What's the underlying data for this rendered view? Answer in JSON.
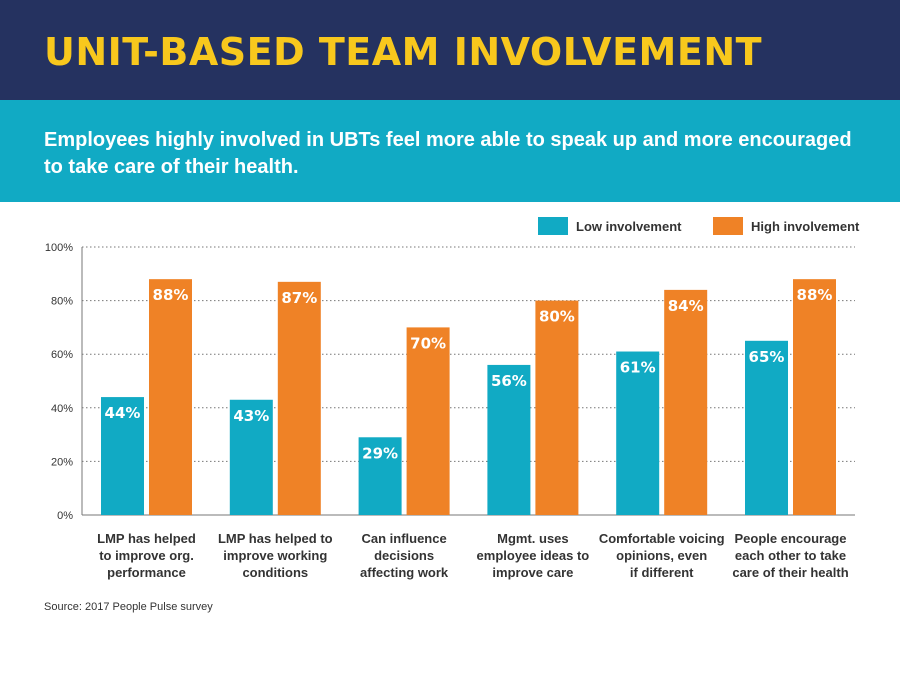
{
  "header": {
    "title": "UNIT-BASED TEAM INVOLVEMENT",
    "subtitle": "Employees highly involved in UBTs feel more able to speak up and more encouraged to take care of their health."
  },
  "colors": {
    "header_bg": "#253260",
    "title": "#f8c81d",
    "subtitle_bg": "#11aac4",
    "low": "#11aac4",
    "high": "#ef8226"
  },
  "source": "Source: 2017 People Pulse survey",
  "chart_data": {
    "type": "bar",
    "title": "",
    "xlabel": "",
    "ylabel": "",
    "ylim": [
      0,
      100
    ],
    "yticks": [
      0,
      20,
      40,
      60,
      80,
      100
    ],
    "ytick_labels": [
      "0%",
      "20%",
      "40%",
      "60%",
      "80%",
      "100%"
    ],
    "grid": true,
    "legend_position": "top-right",
    "categories": [
      "LMP has helped to improve org. performance",
      "LMP has helped to improve working conditions",
      "Can influence decisions affecting work",
      "Mgmt. uses employee ideas to improve care",
      "Comfortable voicing opinions, even if different",
      "People encourage each other to take care of their health"
    ],
    "category_lines": [
      [
        "LMP has helped",
        "to improve org.",
        "performance"
      ],
      [
        "LMP has helped to",
        "improve working",
        "conditions"
      ],
      [
        "Can influence",
        "decisions",
        "affecting work"
      ],
      [
        "Mgmt. uses",
        "employee ideas to",
        "improve care"
      ],
      [
        "Comfortable voicing",
        "opinions, even",
        "if different"
      ],
      [
        "People encourage",
        "each other to take",
        "care of their health"
      ]
    ],
    "series": [
      {
        "name": "Low involvement",
        "color": "#11aac4",
        "values": [
          44,
          43,
          29,
          56,
          61,
          65
        ],
        "labels": [
          "44%",
          "43%",
          "29%",
          "56%",
          "61%",
          "65%"
        ]
      },
      {
        "name": "High involvement",
        "color": "#ef8226",
        "values": [
          88,
          87,
          70,
          80,
          84,
          88
        ],
        "labels": [
          "88%",
          "87%",
          "70%",
          "80%",
          "84%",
          "88%"
        ]
      }
    ]
  }
}
